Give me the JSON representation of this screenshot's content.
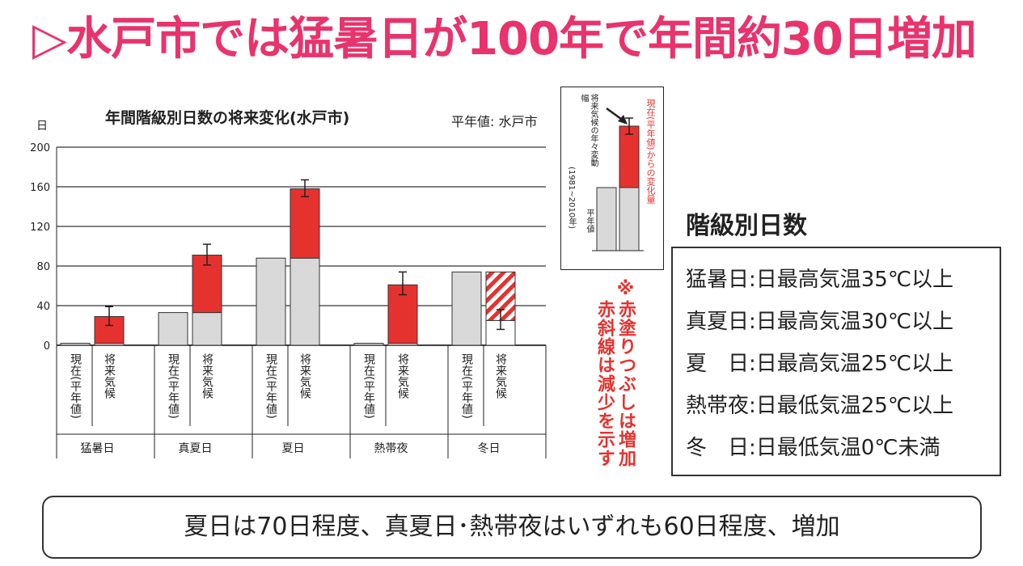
{
  "title": "▷水戸市では猛暑日が100年で年間約30日増加",
  "chart_data": {
    "type": "bar",
    "title": "年間階級別日数の将来変化(水戸市)",
    "subtitle": "平年値: 水戸市",
    "ylabel": "日",
    "ylim": [
      0,
      200
    ],
    "yticks": [
      0,
      40,
      80,
      120,
      160,
      200
    ],
    "grid": true,
    "bar_labels": [
      "現在(平年値)",
      "将来気候"
    ],
    "categories": [
      {
        "name": "猛暑日",
        "current": 2,
        "future": 29,
        "err_low": 20,
        "err_high": 39,
        "direction": "increase"
      },
      {
        "name": "真夏日",
        "current": 33,
        "future": 91,
        "err_low": 81,
        "err_high": 102,
        "direction": "increase"
      },
      {
        "name": "夏日",
        "current": 88,
        "future": 158,
        "err_low": 150,
        "err_high": 167,
        "direction": "increase"
      },
      {
        "name": "熱帯夜",
        "current": 2,
        "future": 61,
        "err_low": 51,
        "err_high": 74,
        "direction": "increase"
      },
      {
        "name": "冬日",
        "current": 74,
        "future": 25,
        "err_low": 16,
        "err_high": 36,
        "direction": "decrease"
      }
    ],
    "colors": {
      "current": "#d9d9d9",
      "increase": "#e6322f",
      "decrease_hatch": "#e6322f",
      "grid": "#000000"
    }
  },
  "reference_box": {
    "label_range": "将来気候の年々変動幅",
    "label_period": "(1981~2010年)",
    "label_normal": "平年値",
    "label_change": "現在(平年値)からの変化量"
  },
  "note": {
    "line1": "※赤塗りつぶしは増加",
    "line2": "赤斜線は減少を示す"
  },
  "legend": {
    "title": "階級別日数",
    "rows": [
      "猛暑日:日最高気温35℃以上",
      "真夏日:日最高気温30℃以上",
      "夏　日:日最高気温25℃以上",
      "熱帯夜:日最低気温25℃以上",
      "冬　日:日最低気温0℃未満"
    ]
  },
  "summary": "夏日は70日程度、真夏日･熱帯夜はいずれも60日程度、増加"
}
